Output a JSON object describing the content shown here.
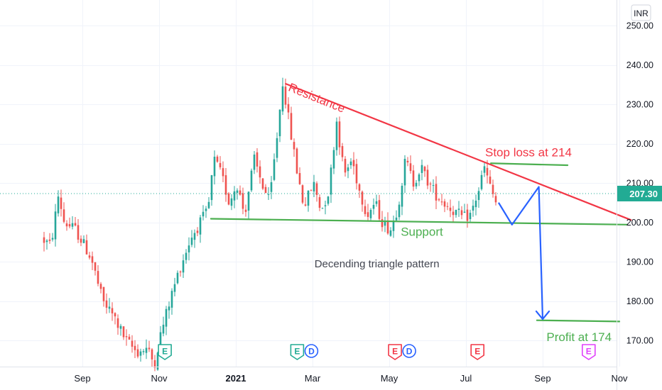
{
  "chart_data": {
    "type": "candlestick",
    "currency": "INR",
    "y_axis": {
      "range": [
        163,
        254
      ],
      "ticks": [
        170,
        180,
        190,
        200,
        210,
        220,
        230,
        240,
        250
      ],
      "tick_labels": [
        "170.00",
        "180.00",
        "190.00",
        "200.00",
        "210.00",
        "220.00",
        "230.00",
        "240.00",
        "250.00"
      ]
    },
    "x_axis": {
      "ticks": [
        {
          "label": "Sep",
          "t": 1.0,
          "bold": false
        },
        {
          "label": "Nov",
          "t": 3.0,
          "bold": false
        },
        {
          "label": "2021",
          "t": 5.0,
          "bold": true
        },
        {
          "label": "Mar",
          "t": 7.0,
          "bold": false
        },
        {
          "label": "May",
          "t": 9.0,
          "bold": false
        },
        {
          "label": "Jul",
          "t": 11.0,
          "bold": false
        },
        {
          "label": "Sep",
          "t": 13.0,
          "bold": false
        },
        {
          "label": "Nov",
          "t": 15.0,
          "bold": false
        }
      ]
    },
    "price_path": [
      [
        0.0,
        196
      ],
      [
        0.25,
        194
      ],
      [
        0.45,
        207
      ],
      [
        0.6,
        200
      ],
      [
        0.9,
        198
      ],
      [
        1.3,
        191
      ],
      [
        1.6,
        180
      ],
      [
        1.9,
        176
      ],
      [
        2.2,
        170
      ],
      [
        2.5,
        167
      ],
      [
        2.75,
        168
      ],
      [
        2.95,
        164
      ],
      [
        3.1,
        171
      ],
      [
        3.35,
        180
      ],
      [
        3.6,
        188
      ],
      [
        3.9,
        196
      ],
      [
        4.15,
        200
      ],
      [
        4.35,
        203
      ],
      [
        4.5,
        216
      ],
      [
        4.7,
        212
      ],
      [
        4.9,
        205
      ],
      [
        5.1,
        210
      ],
      [
        5.3,
        202
      ],
      [
        5.55,
        216
      ],
      [
        5.75,
        210
      ],
      [
        5.95,
        205
      ],
      [
        6.15,
        222
      ],
      [
        6.3,
        236
      ],
      [
        6.45,
        226
      ],
      [
        6.65,
        214
      ],
      [
        6.85,
        204
      ],
      [
        7.1,
        210
      ],
      [
        7.3,
        203
      ],
      [
        7.5,
        208
      ],
      [
        7.7,
        226
      ],
      [
        7.9,
        212
      ],
      [
        8.1,
        216
      ],
      [
        8.3,
        208
      ],
      [
        8.5,
        202
      ],
      [
        8.7,
        205
      ],
      [
        8.9,
        200
      ],
      [
        9.1,
        198
      ],
      [
        9.3,
        204
      ],
      [
        9.5,
        216
      ],
      [
        9.7,
        210
      ],
      [
        9.9,
        214
      ],
      [
        10.1,
        210
      ],
      [
        10.3,
        207
      ],
      [
        10.5,
        205
      ],
      [
        10.75,
        203
      ],
      [
        11.0,
        201
      ],
      [
        11.2,
        202
      ],
      [
        11.4,
        208
      ],
      [
        11.55,
        214
      ],
      [
        11.7,
        209
      ],
      [
        11.85,
        205
      ]
    ],
    "last_price": 207.3,
    "last_price_label": "207.30",
    "lines": [
      {
        "name": "resistance",
        "from": [
          6.3,
          235.2
        ],
        "to": [
          15.3,
          200.6
        ],
        "color": "#f23645"
      },
      {
        "name": "support",
        "from": [
          4.35,
          200.9
        ],
        "to": [
          15.2,
          199.4
        ],
        "color": "#4caf50"
      },
      {
        "name": "stop-loss",
        "from": [
          11.65,
          215.0
        ],
        "to": [
          13.65,
          214.5
        ],
        "color": "#4caf50"
      },
      {
        "name": "profit-target",
        "from": [
          12.85,
          175.1
        ],
        "to": [
          15.0,
          174.8
        ],
        "color": "#4caf50"
      }
    ],
    "projection": [
      [
        11.85,
        205
      ],
      [
        12.2,
        199.4
      ],
      [
        12.9,
        209
      ],
      [
        13.0,
        175.4
      ]
    ],
    "projection_color": "#2962ff",
    "annotations": [
      {
        "key": "resistance",
        "text": "Resistance",
        "t": 6.35,
        "y": 233.5,
        "color": "#f23645",
        "size": 17,
        "rotate": 22
      },
      {
        "key": "stop_loss",
        "text": "Stop loss at 214",
        "t": 11.5,
        "y": 216.8,
        "color": "#f23645",
        "size": 17,
        "rotate": 0
      },
      {
        "key": "support",
        "text": "Support",
        "t": 9.3,
        "y": 196.6,
        "color": "#4caf50",
        "size": 17,
        "rotate": 0
      },
      {
        "key": "pattern",
        "text": "Decending triangle pattern",
        "t": 7.05,
        "y": 188.6,
        "color": "#434651",
        "size": 15,
        "rotate": 0
      },
      {
        "key": "profit",
        "text": "Profit at 174",
        "t": 13.1,
        "y": 169.8,
        "color": "#4caf50",
        "size": 17,
        "rotate": 0
      }
    ],
    "events": [
      {
        "t": 3.15,
        "badges": [
          {
            "letter": "E",
            "color": "#22ab94"
          }
        ]
      },
      {
        "t": 6.6,
        "badges": [
          {
            "letter": "E",
            "color": "#22ab94"
          },
          {
            "letter": "D",
            "color": "#2962ff"
          }
        ]
      },
      {
        "t": 9.15,
        "badges": [
          {
            "letter": "E",
            "color": "#f23645"
          },
          {
            "letter": "D",
            "color": "#2962ff"
          }
        ]
      },
      {
        "t": 11.3,
        "badges": [
          {
            "letter": "E",
            "color": "#f23645"
          }
        ]
      },
      {
        "t": 14.2,
        "badges": [
          {
            "letter": "E",
            "color": "#e040fb"
          }
        ]
      }
    ],
    "colors": {
      "up": "#26a69a",
      "down": "#ef5350",
      "grid": "#f0f3fa",
      "price_tag": "#22ab94"
    }
  }
}
